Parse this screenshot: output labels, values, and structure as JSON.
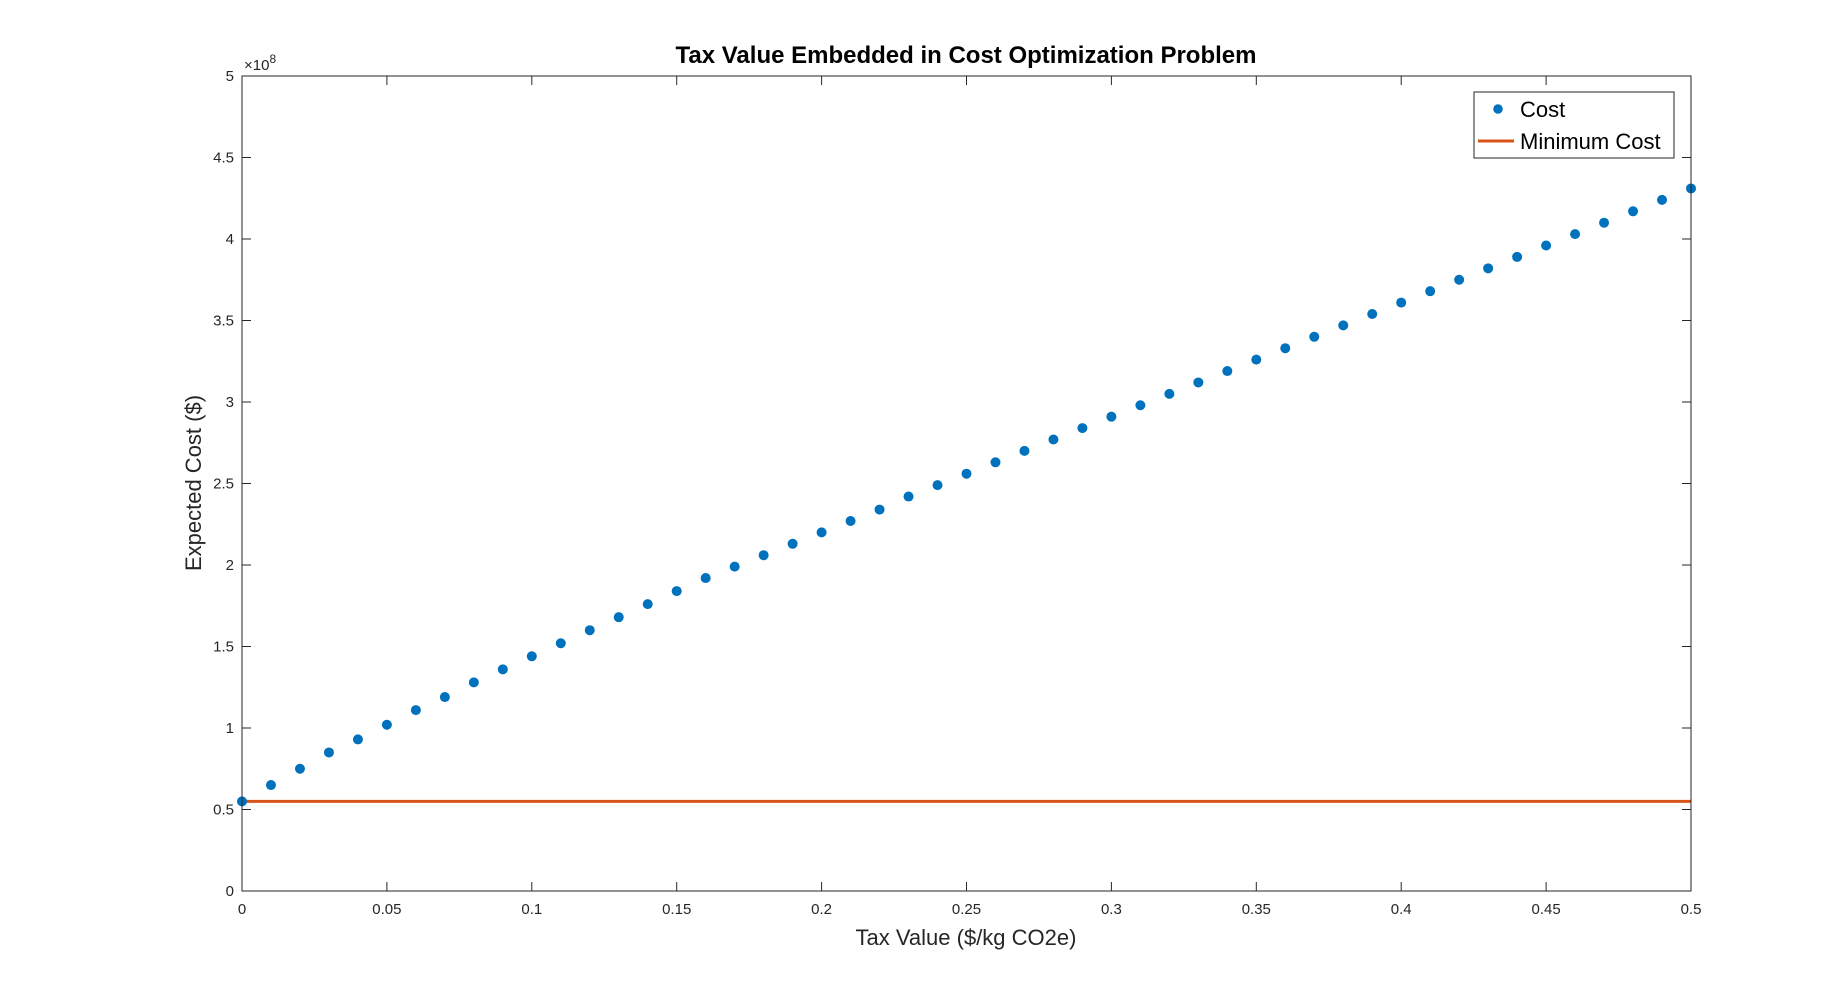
{
  "chart_data": {
    "type": "scatter",
    "title": "Tax Value Embedded in Cost Optimization Problem",
    "xlabel": "Tax Value ($/kg CO2e)",
    "ylabel": "Expected Cost ($)",
    "xlim": [
      0,
      0.5
    ],
    "ylim": [
      0,
      5
    ],
    "y_exponent_label": "×10",
    "y_exponent_power": "8",
    "y_scale_factor": 100000000,
    "grid": false,
    "legend_position": "top-right",
    "xticks": [
      0,
      0.05,
      0.1,
      0.15,
      0.2,
      0.25,
      0.3,
      0.35,
      0.4,
      0.45,
      0.5
    ],
    "xtick_labels": [
      "0",
      "0.05",
      "0.1",
      "0.15",
      "0.2",
      "0.25",
      "0.3",
      "0.35",
      "0.4",
      "0.45",
      "0.5"
    ],
    "yticks": [
      0,
      0.5,
      1,
      1.5,
      2,
      2.5,
      3,
      3.5,
      4,
      4.5,
      5
    ],
    "ytick_labels": [
      "0",
      "0.5",
      "1",
      "1.5",
      "2",
      "2.5",
      "3",
      "3.5",
      "4",
      "4.5",
      "5"
    ],
    "series": [
      {
        "name": "Cost",
        "kind": "markers",
        "color": "#0072BD",
        "x": [
          0,
          0.01,
          0.02,
          0.03,
          0.04,
          0.05,
          0.06,
          0.07,
          0.08,
          0.09,
          0.1,
          0.11,
          0.12,
          0.13,
          0.14,
          0.15,
          0.16,
          0.17,
          0.18,
          0.19,
          0.2,
          0.21,
          0.22,
          0.23,
          0.24,
          0.25,
          0.26,
          0.27,
          0.28,
          0.29,
          0.3,
          0.31,
          0.32,
          0.33,
          0.34,
          0.35,
          0.36,
          0.37,
          0.38,
          0.39,
          0.4,
          0.41,
          0.42,
          0.43,
          0.44,
          0.45,
          0.46,
          0.47,
          0.48,
          0.49,
          0.5
        ],
        "y": [
          0.55,
          0.65,
          0.75,
          0.85,
          0.93,
          1.02,
          1.11,
          1.19,
          1.28,
          1.36,
          1.44,
          1.52,
          1.6,
          1.68,
          1.76,
          1.84,
          1.92,
          1.99,
          2.06,
          2.13,
          2.2,
          2.27,
          2.34,
          2.42,
          2.49,
          2.56,
          2.63,
          2.7,
          2.77,
          2.84,
          2.91,
          2.98,
          3.05,
          3.12,
          3.19,
          3.26,
          3.33,
          3.4,
          3.47,
          3.54,
          3.61,
          3.68,
          3.75,
          3.82,
          3.89,
          3.96,
          4.03,
          4.1,
          4.17,
          4.24,
          4.31
        ]
      },
      {
        "name": "Minimum Cost",
        "kind": "line",
        "color": "#D95319",
        "x": [
          0,
          0.5
        ],
        "y": [
          0.55,
          0.55
        ]
      }
    ]
  }
}
